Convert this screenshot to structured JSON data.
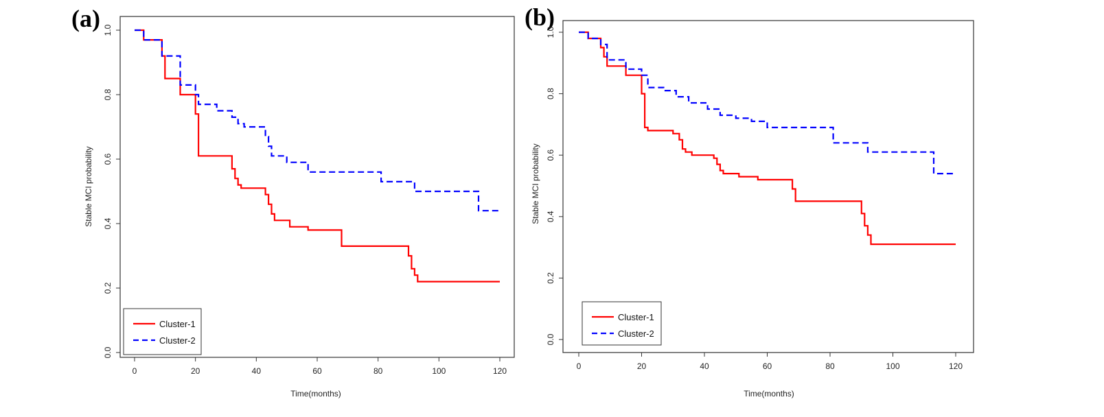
{
  "chart_data": [
    {
      "type": "line",
      "panel_label": "(a)",
      "title": "",
      "xlabel": "Time(months)",
      "ylabel": "Stable MCI probability",
      "xlim": [
        0,
        120
      ],
      "ylim": [
        0.0,
        1.0
      ],
      "xticks": [
        0,
        20,
        40,
        60,
        80,
        100,
        120
      ],
      "yticks": [
        0.0,
        0.2,
        0.4,
        0.6,
        0.8,
        1.0
      ],
      "xtick_labels": [
        "0",
        "20",
        "40",
        "60",
        "80",
        "100",
        "120"
      ],
      "ytick_labels": [
        "0.0",
        "0.2",
        "0.4",
        "0.6",
        "0.8",
        "1.0"
      ],
      "step": true,
      "legend_position": "bottom-left",
      "series": [
        {
          "name": "Cluster-1",
          "color": "#ff0000",
          "style": "solid",
          "x": [
            0,
            3,
            9,
            10,
            15,
            20,
            21,
            32,
            33,
            34,
            35,
            43,
            44,
            45,
            46,
            51,
            57,
            68,
            90,
            91,
            92,
            93,
            120
          ],
          "y": [
            1.0,
            0.97,
            0.92,
            0.85,
            0.8,
            0.74,
            0.61,
            0.57,
            0.54,
            0.52,
            0.51,
            0.49,
            0.46,
            0.43,
            0.41,
            0.39,
            0.38,
            0.33,
            0.3,
            0.26,
            0.24,
            0.22,
            0.22
          ]
        },
        {
          "name": "Cluster-2",
          "color": "#0000ff",
          "style": "dashed",
          "x": [
            0,
            3,
            9,
            15,
            20,
            21,
            27,
            32,
            34,
            36,
            43,
            44,
            45,
            46,
            50,
            57,
            81,
            92,
            113,
            120
          ],
          "y": [
            1.0,
            0.97,
            0.92,
            0.83,
            0.8,
            0.77,
            0.75,
            0.73,
            0.71,
            0.7,
            0.67,
            0.64,
            0.61,
            0.61,
            0.59,
            0.56,
            0.53,
            0.5,
            0.44,
            0.44
          ]
        }
      ]
    },
    {
      "type": "line",
      "panel_label": "(b)",
      "title": "",
      "xlabel": "Time(months)",
      "ylabel": "Stable MCI probability",
      "xlim": [
        0,
        120
      ],
      "ylim": [
        0.0,
        1.0
      ],
      "xticks": [
        0,
        20,
        40,
        60,
        80,
        100,
        120
      ],
      "yticks": [
        0.0,
        0.2,
        0.4,
        0.6,
        0.8,
        1.0
      ],
      "xtick_labels": [
        "0",
        "20",
        "40",
        "60",
        "80",
        "100",
        "120"
      ],
      "ytick_labels": [
        "0.0",
        "0.2",
        "0.4",
        "0.6",
        "0.8",
        "1.0"
      ],
      "step": true,
      "legend_position": "bottom-left",
      "series": [
        {
          "name": "Cluster-1",
          "color": "#ff0000",
          "style": "solid",
          "x": [
            0,
            3,
            7,
            8,
            9,
            15,
            20,
            21,
            22,
            30,
            32,
            33,
            34,
            36,
            43,
            44,
            45,
            46,
            51,
            57,
            68,
            69,
            90,
            91,
            92,
            93,
            120
          ],
          "y": [
            1.0,
            0.98,
            0.95,
            0.92,
            0.89,
            0.86,
            0.8,
            0.69,
            0.68,
            0.67,
            0.65,
            0.62,
            0.61,
            0.6,
            0.59,
            0.57,
            0.55,
            0.54,
            0.53,
            0.52,
            0.49,
            0.45,
            0.41,
            0.37,
            0.34,
            0.31,
            0.31
          ]
        },
        {
          "name": "Cluster-2",
          "color": "#0000ff",
          "style": "dashed",
          "x": [
            0,
            3,
            7,
            9,
            15,
            20,
            22,
            27,
            31,
            35,
            41,
            45,
            50,
            55,
            60,
            81,
            92,
            113,
            120
          ],
          "y": [
            1.0,
            0.98,
            0.96,
            0.91,
            0.88,
            0.86,
            0.82,
            0.81,
            0.79,
            0.77,
            0.75,
            0.73,
            0.72,
            0.71,
            0.69,
            0.64,
            0.61,
            0.54,
            0.54
          ]
        }
      ]
    }
  ]
}
